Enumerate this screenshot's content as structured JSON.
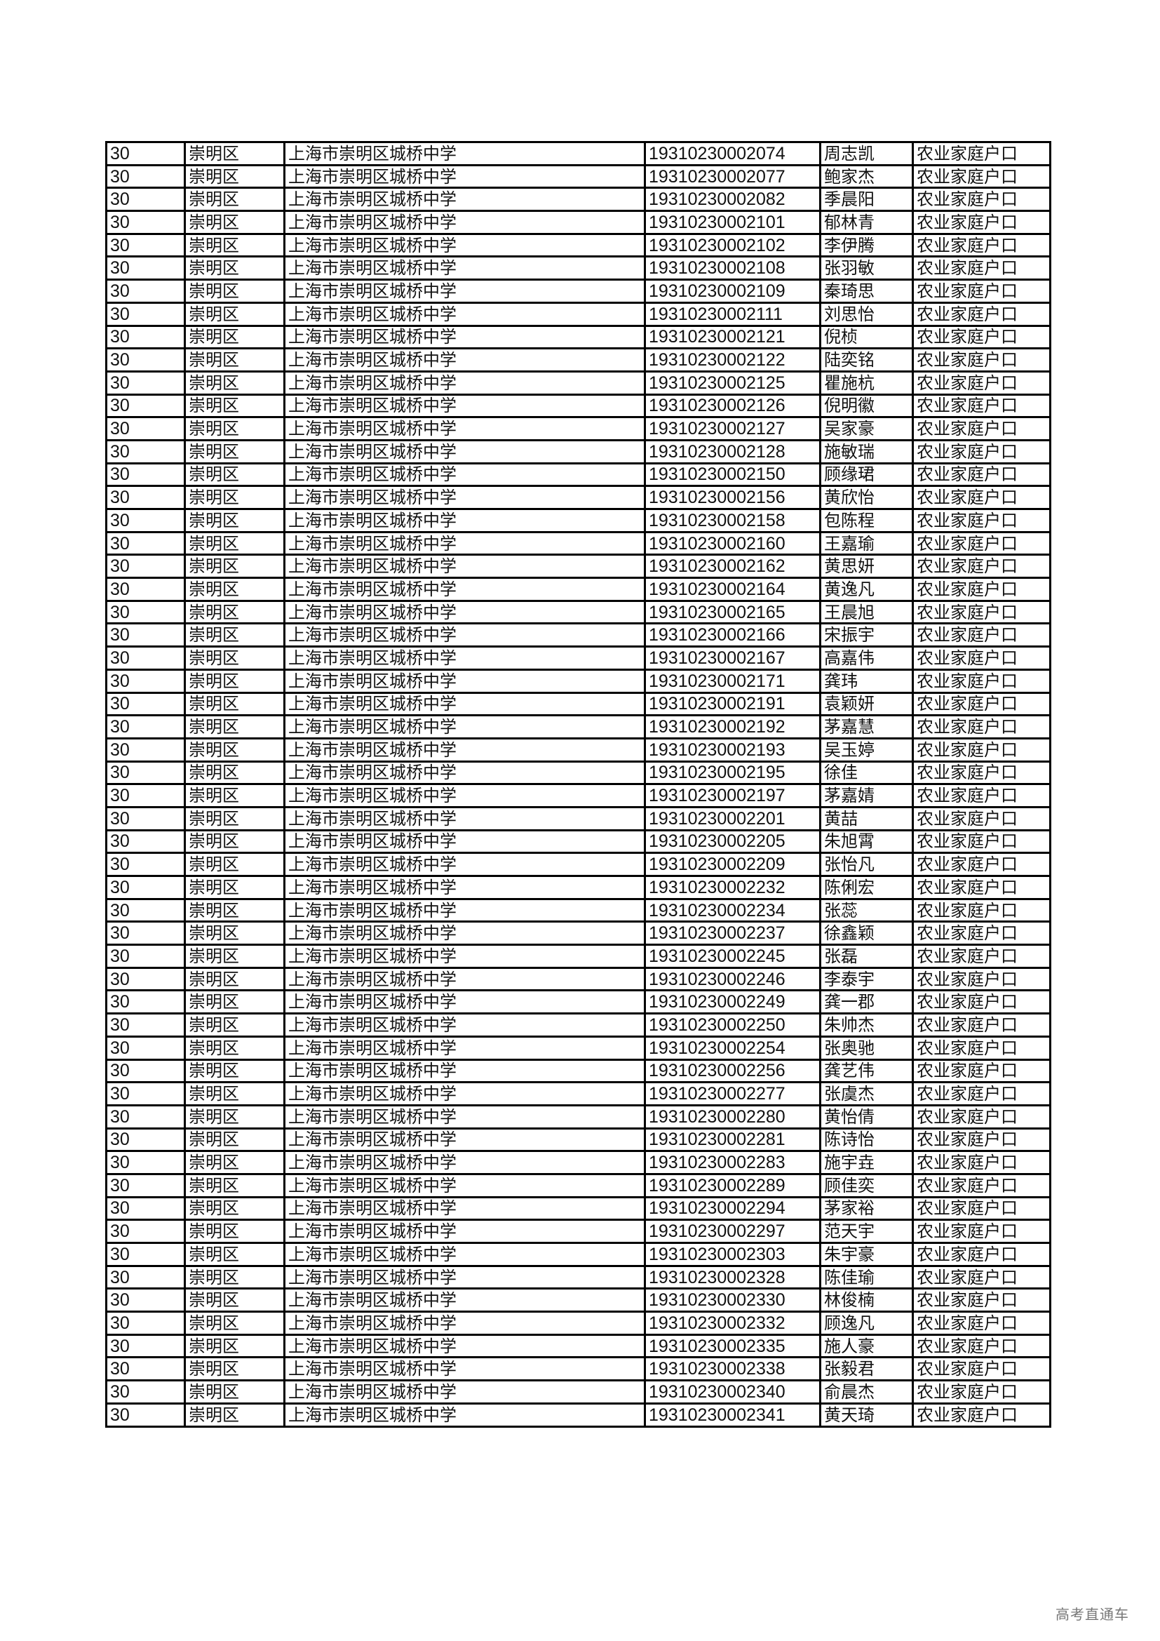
{
  "table": {
    "common": {
      "code": "30",
      "district": "崇明区",
      "school": "上海市崇明区城桥中学",
      "household": "农业家庭户口"
    },
    "rows": [
      [
        "19310230002074",
        "周志凯"
      ],
      [
        "19310230002077",
        "鲍家杰"
      ],
      [
        "19310230002082",
        "季晨阳"
      ],
      [
        "19310230002101",
        "郁林青"
      ],
      [
        "19310230002102",
        "李伊腾"
      ],
      [
        "19310230002108",
        "张羽敏"
      ],
      [
        "19310230002109",
        "秦琦思"
      ],
      [
        "19310230002111",
        "刘思怡"
      ],
      [
        "19310230002121",
        "倪桢"
      ],
      [
        "19310230002122",
        "陆奕铭"
      ],
      [
        "19310230002125",
        "瞿施杭"
      ],
      [
        "19310230002126",
        "倪明徽"
      ],
      [
        "19310230002127",
        "吴家豪"
      ],
      [
        "19310230002128",
        "施敏瑞"
      ],
      [
        "19310230002150",
        "顾缘珺"
      ],
      [
        "19310230002156",
        "黄欣怡"
      ],
      [
        "19310230002158",
        "包陈程"
      ],
      [
        "19310230002160",
        "王嘉瑜"
      ],
      [
        "19310230002162",
        "黄思妍"
      ],
      [
        "19310230002164",
        "黄逸凡"
      ],
      [
        "19310230002165",
        "王晨旭"
      ],
      [
        "19310230002166",
        "宋振宇"
      ],
      [
        "19310230002167",
        "高嘉伟"
      ],
      [
        "19310230002171",
        "龚玮"
      ],
      [
        "19310230002191",
        "袁颖妍"
      ],
      [
        "19310230002192",
        "茅嘉慧"
      ],
      [
        "19310230002193",
        "吴玉婷"
      ],
      [
        "19310230002195",
        "徐佳"
      ],
      [
        "19310230002197",
        "茅嘉婧"
      ],
      [
        "19310230002201",
        "黄喆"
      ],
      [
        "19310230002205",
        "朱旭霄"
      ],
      [
        "19310230002209",
        "张怡凡"
      ],
      [
        "19310230002232",
        "陈俐宏"
      ],
      [
        "19310230002234",
        "张蕊"
      ],
      [
        "19310230002237",
        "徐鑫颖"
      ],
      [
        "19310230002245",
        "张磊"
      ],
      [
        "19310230002246",
        "李泰宇"
      ],
      [
        "19310230002249",
        "龚一郡"
      ],
      [
        "19310230002250",
        "朱帅杰"
      ],
      [
        "19310230002254",
        "张奥驰"
      ],
      [
        "19310230002256",
        "龚艺伟"
      ],
      [
        "19310230002277",
        "张虞杰"
      ],
      [
        "19310230002280",
        "黄怡倩"
      ],
      [
        "19310230002281",
        "陈诗怡"
      ],
      [
        "19310230002283",
        "施宇垚"
      ],
      [
        "19310230002289",
        "顾佳奕"
      ],
      [
        "19310230002294",
        "茅家裕"
      ],
      [
        "19310230002297",
        "范天宇"
      ],
      [
        "19310230002303",
        "朱宇豪"
      ],
      [
        "19310230002328",
        "陈佳瑜"
      ],
      [
        "19310230002330",
        "林俊楠"
      ],
      [
        "19310230002332",
        "顾逸凡"
      ],
      [
        "19310230002335",
        "施人豪"
      ],
      [
        "19310230002338",
        "张毅君"
      ],
      [
        "19310230002340",
        "俞晨杰"
      ],
      [
        "19310230002341",
        "黄天琦"
      ]
    ]
  },
  "watermark": "高考直通车"
}
